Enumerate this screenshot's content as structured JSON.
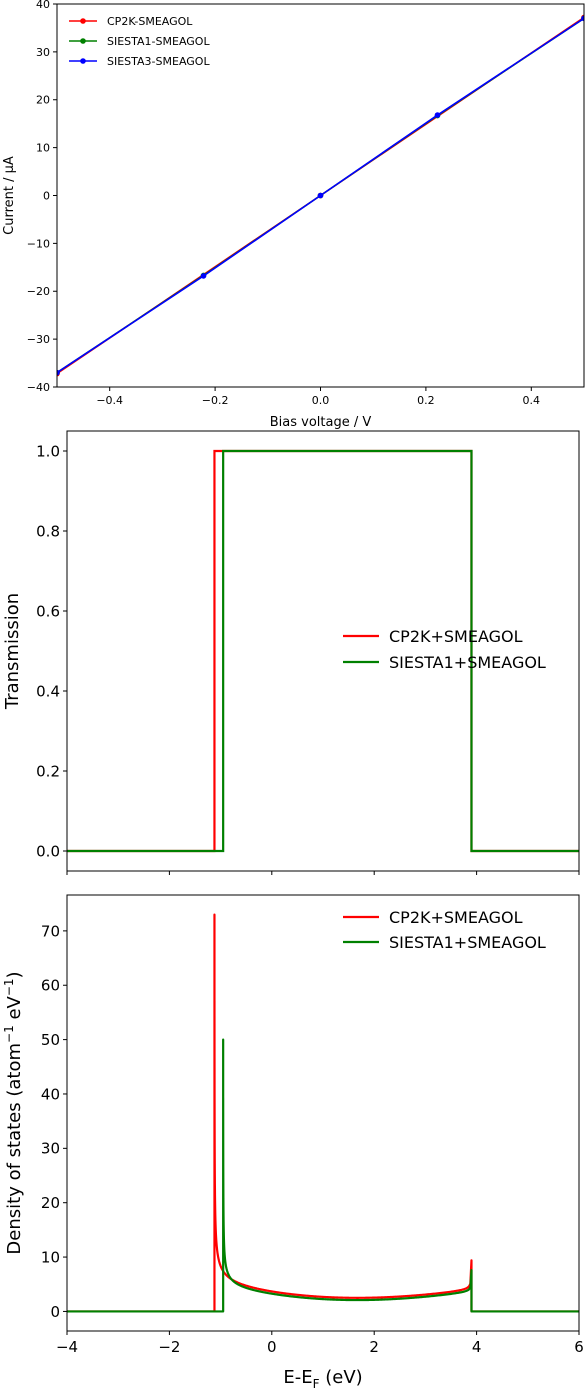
{
  "chart_data": [
    {
      "type": "line",
      "xlabel": "Bias voltage / V",
      "ylabel": "Current / μA",
      "xlim": [
        -0.5,
        0.5
      ],
      "ylim": [
        -40,
        40
      ],
      "xticks": [
        -0.4,
        -0.2,
        0.0,
        0.2,
        0.4
      ],
      "xtick_labels": [
        "−0.4",
        "−0.2",
        "0.0",
        "0.2",
        "0.4"
      ],
      "yticks": [
        -40,
        -30,
        -20,
        -10,
        0,
        10,
        20,
        30,
        40
      ],
      "ytick_labels": [
        "−40",
        "−30",
        "−20",
        "−10",
        "0",
        "10",
        "20",
        "30",
        "40"
      ],
      "legend_position": "top-left",
      "series": [
        {
          "name": "CP2K-SMEAGOL",
          "color": "#ff0000",
          "x": [
            -0.5,
            0.0,
            0.5
          ],
          "y": [
            -37.2,
            0.0,
            37.2
          ],
          "markers": true
        },
        {
          "name": "SIESTA1-SMEAGOL",
          "color": "#008000",
          "x": [
            -0.5,
            -0.222,
            0.0,
            0.222,
            0.5
          ],
          "y": [
            -37.0,
            -16.7,
            0.0,
            16.7,
            37.0
          ],
          "markers": true
        },
        {
          "name": "SIESTA3-SMEAGOL",
          "color": "#0000ff",
          "x": [
            -0.5,
            -0.222,
            0.0,
            0.222,
            0.5
          ],
          "y": [
            -37.0,
            -16.8,
            0.0,
            16.8,
            37.0
          ],
          "markers": true
        }
      ]
    },
    {
      "type": "line",
      "xlabel": "",
      "ylabel": "Transmission",
      "xlim": [
        -4,
        6
      ],
      "ylim": [
        -0.05,
        1.05
      ],
      "xticks": [
        -4,
        -2,
        0,
        2,
        4,
        6
      ],
      "yticks": [
        0.0,
        0.2,
        0.4,
        0.6,
        0.8,
        1.0
      ],
      "ytick_labels": [
        "0.0",
        "0.2",
        "0.4",
        "0.6",
        "0.8",
        "1.0"
      ],
      "show_xtick_labels": false,
      "legend_position": "center-right",
      "series": [
        {
          "name": "CP2K+SMEAGOL",
          "color": "#ff0000",
          "x": [
            -4,
            -1.12,
            -1.12,
            3.9,
            3.9,
            6
          ],
          "y": [
            0,
            0,
            1,
            1,
            0,
            0
          ]
        },
        {
          "name": "SIESTA1+SMEAGOL",
          "color": "#008000",
          "x": [
            -4,
            -0.95,
            -0.95,
            3.9,
            3.9,
            6
          ],
          "y": [
            0,
            0,
            1,
            1,
            0,
            0
          ]
        }
      ]
    },
    {
      "type": "line",
      "xlabel": "E-E",
      "xlabel_sub": "F",
      "xlabel_suffix": " (eV)",
      "ylabel": "Density of states (atom",
      "ylabel_sup1": "−1",
      "ylabel_mid": " eV",
      "ylabel_sup2": "−1",
      "ylabel_end": ")",
      "xlim": [
        -4,
        6
      ],
      "ylim": [
        -3.6,
        76.6
      ],
      "xticks": [
        -4,
        -2,
        0,
        2,
        4,
        6
      ],
      "xtick_labels": [
        "−4",
        "−2",
        "0",
        "2",
        "4",
        "6"
      ],
      "yticks": [
        0,
        10,
        20,
        30,
        40,
        50,
        60,
        70
      ],
      "ytick_labels": [
        "0",
        "10",
        "20",
        "30",
        "40",
        "50",
        "60",
        "70"
      ],
      "legend_position": "top-right",
      "series": [
        {
          "name": "CP2K+SMEAGOL",
          "color": "#ff0000",
          "band_edges": [
            -1.12,
            3.9
          ],
          "peak_low": 73,
          "peak_high": 9.4
        },
        {
          "name": "SIESTA1+SMEAGOL",
          "color": "#008000",
          "band_edges": [
            -0.95,
            3.9
          ],
          "peak_low": 50,
          "peak_high": 7.6
        }
      ]
    }
  ]
}
